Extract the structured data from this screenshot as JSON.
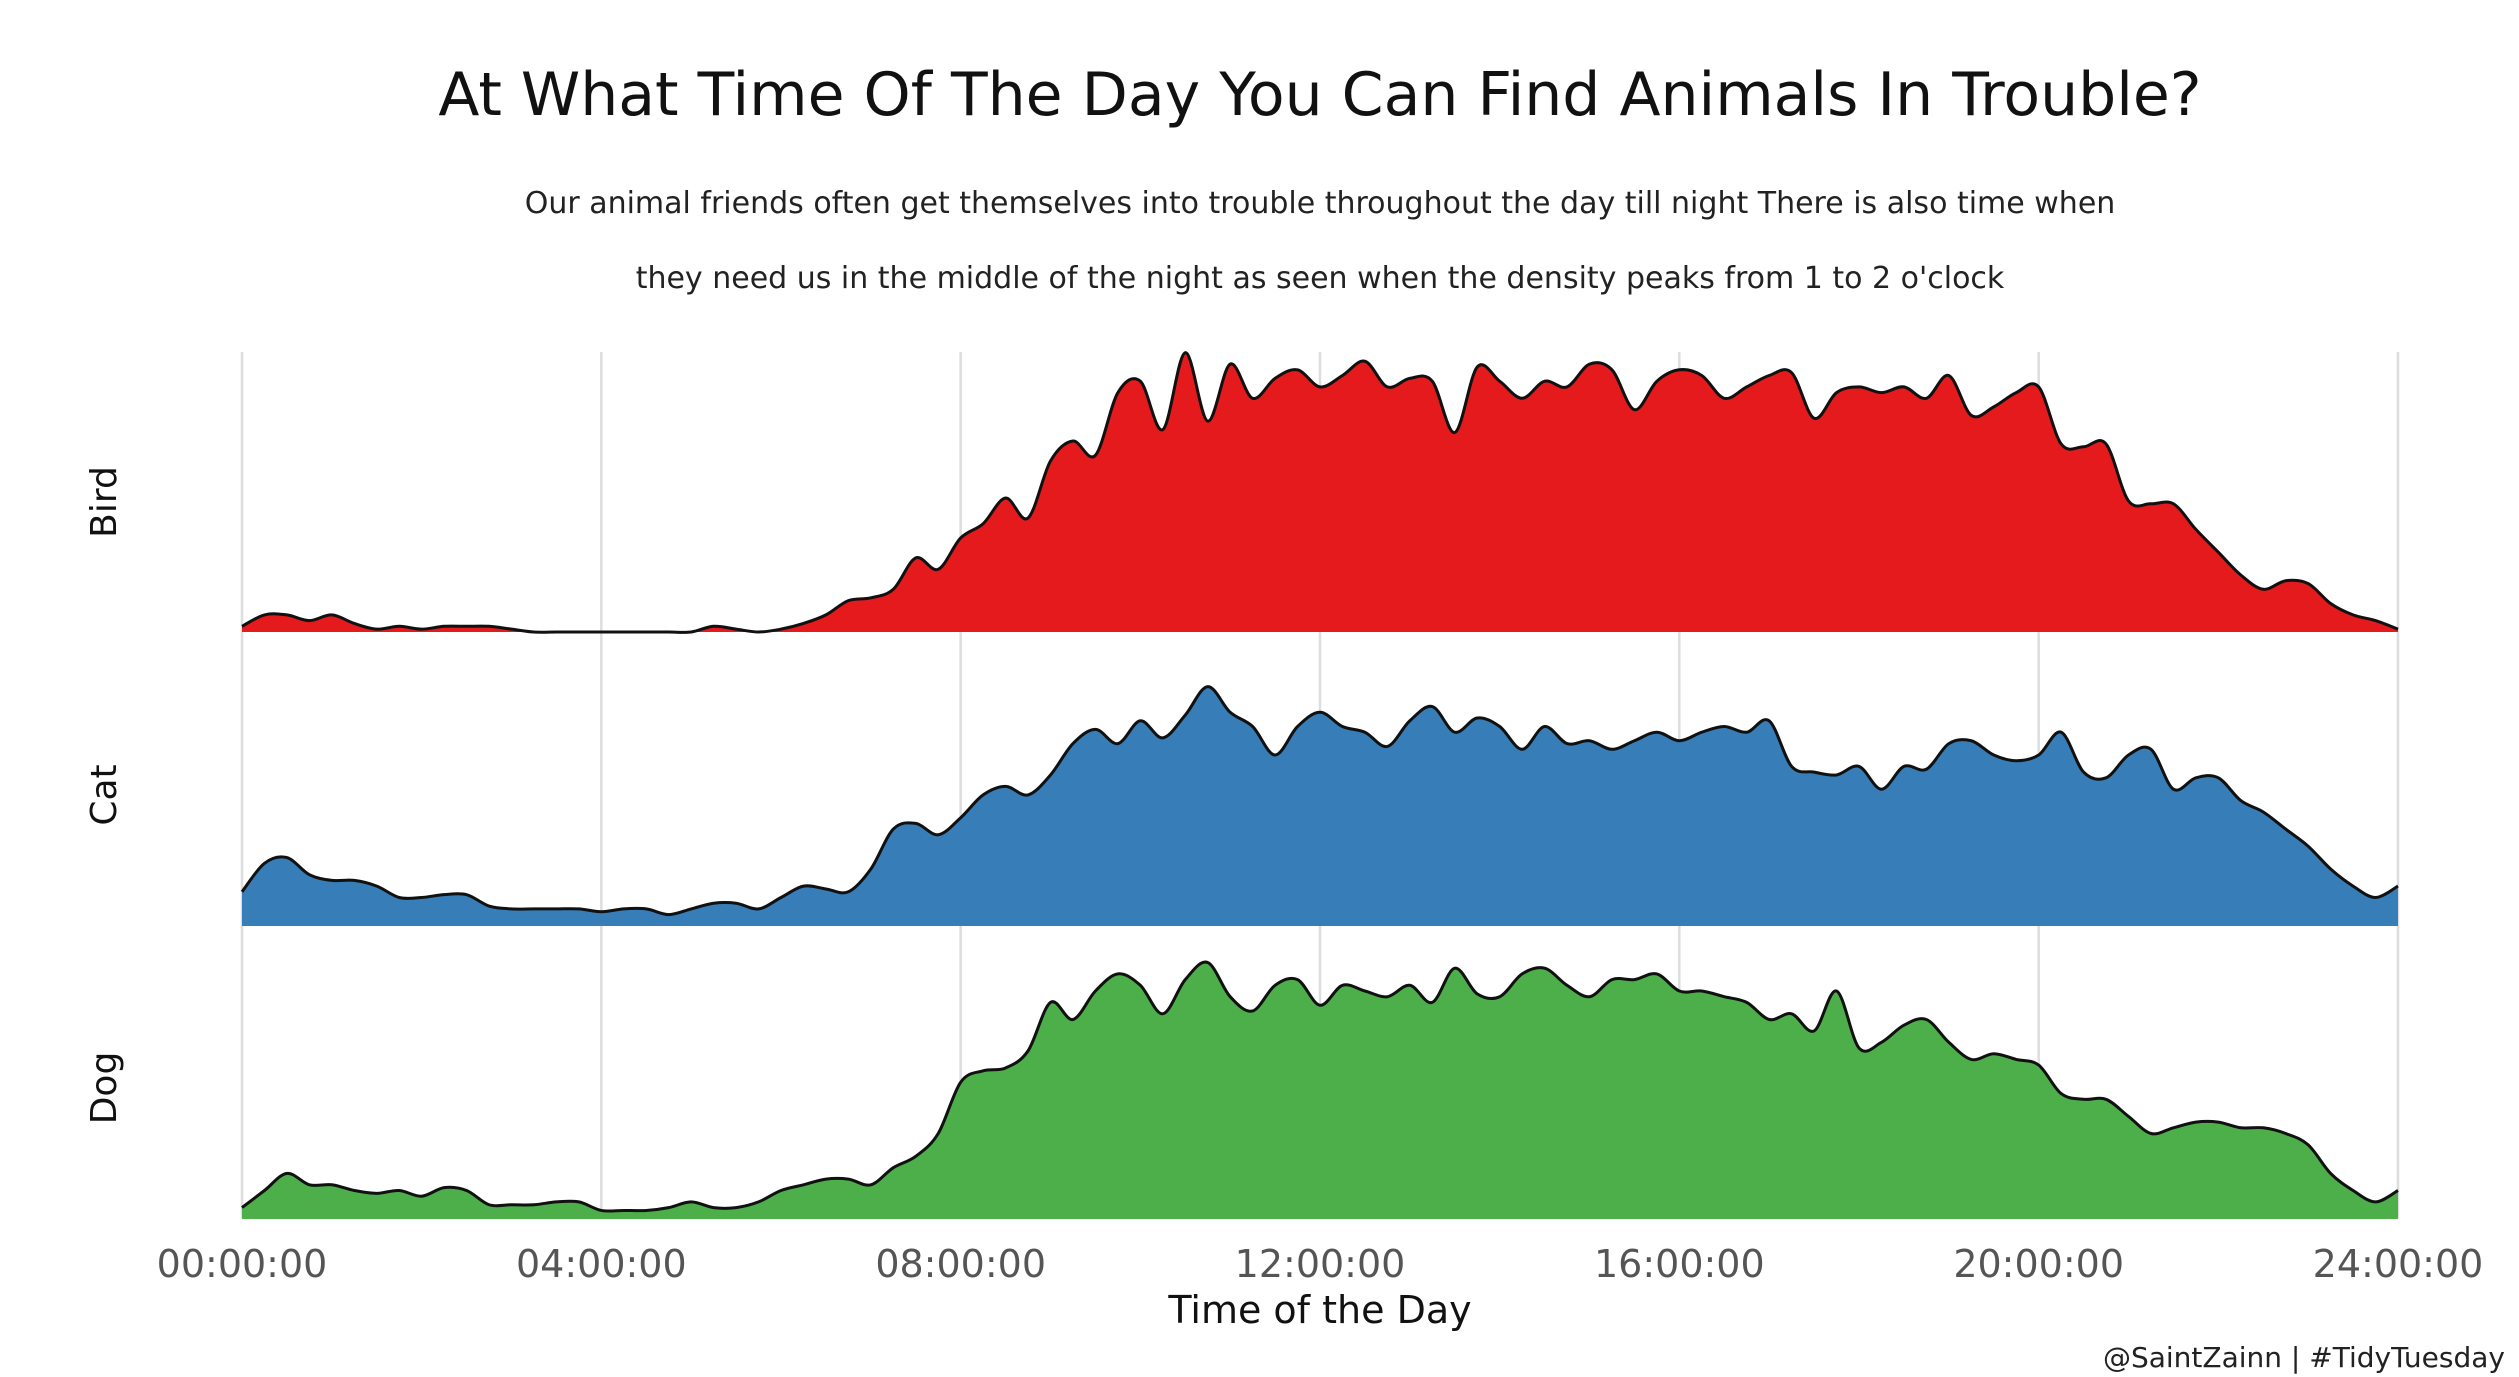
{
  "chart_data": {
    "type": "area",
    "title": "At What Time Of The Day You Can Find Animals In Trouble?",
    "subtitle_lines": [
      "Our animal friends often get themselves into trouble throughout the day till night There is also time when",
      "they need us in the middle of the night as seen when the density peaks from 1 to 2 o'clock"
    ],
    "xlabel": "Time of the Day",
    "ylabel": "",
    "xlim": [
      0,
      24
    ],
    "x_ticks": [
      0,
      4,
      8,
      12,
      16,
      20,
      24
    ],
    "x_tick_labels": [
      "00:00:00",
      "04:00:00",
      "08:00:00",
      "12:00:00",
      "16:00:00",
      "20:00:00",
      "24:00:00"
    ],
    "caption": "@SaintZainn | #TidyTuesday",
    "grid": "vertical",
    "series": [
      {
        "name": "Bird",
        "color": "#E41A1C",
        "x": [
          0,
          0.25,
          0.5,
          0.75,
          1.0,
          1.25,
          1.5,
          1.75,
          2.0,
          2.25,
          2.5,
          2.75,
          3.0,
          3.25,
          3.5,
          3.75,
          4.0,
          4.25,
          4.5,
          4.75,
          5.0,
          5.25,
          5.5,
          5.75,
          6.0,
          6.25,
          6.5,
          6.75,
          7.0,
          7.25,
          7.5,
          7.75,
          8.0,
          8.25,
          8.5,
          8.75,
          9.0,
          9.25,
          9.5,
          9.75,
          10.0,
          10.25,
          10.5,
          10.75,
          11.0,
          11.25,
          11.5,
          11.75,
          12.0,
          12.25,
          12.5,
          12.75,
          13.0,
          13.25,
          13.5,
          13.75,
          14.0,
          14.25,
          14.5,
          14.75,
          15.0,
          15.25,
          15.5,
          15.75,
          16.0,
          16.25,
          16.5,
          16.75,
          17.0,
          17.25,
          17.5,
          17.75,
          18.0,
          18.25,
          18.5,
          18.75,
          19.0,
          19.25,
          19.5,
          19.75,
          20.0,
          20.25,
          20.5,
          20.75,
          21.0,
          21.25,
          21.5,
          21.75,
          22.0,
          22.25,
          22.5,
          22.75,
          23.0,
          23.25,
          23.5,
          23.75,
          24.0
        ],
        "y": [
          0.02,
          0.06,
          0.06,
          0.04,
          0.06,
          0.03,
          0.01,
          0.02,
          0.01,
          0.02,
          0.02,
          0.02,
          0.01,
          0.0,
          0.0,
          0.0,
          0.0,
          0.0,
          0.0,
          0.0,
          0.0,
          0.02,
          0.01,
          0.0,
          0.01,
          0.03,
          0.06,
          0.11,
          0.12,
          0.15,
          0.26,
          0.22,
          0.33,
          0.38,
          0.47,
          0.4,
          0.6,
          0.67,
          0.62,
          0.84,
          0.88,
          0.71,
          0.98,
          0.74,
          0.94,
          0.82,
          0.89,
          0.92,
          0.86,
          0.9,
          0.95,
          0.86,
          0.89,
          0.88,
          0.7,
          0.93,
          0.88,
          0.82,
          0.88,
          0.86,
          0.94,
          0.92,
          0.78,
          0.88,
          0.92,
          0.9,
          0.82,
          0.86,
          0.9,
          0.91,
          0.75,
          0.84,
          0.86,
          0.84,
          0.86,
          0.82,
          0.9,
          0.76,
          0.79,
          0.84,
          0.86,
          0.66,
          0.65,
          0.66,
          0.46,
          0.45,
          0.45,
          0.36,
          0.28,
          0.2,
          0.15,
          0.18,
          0.17,
          0.1,
          0.06,
          0.04,
          0.01
        ]
      },
      {
        "name": "Cat",
        "color": "#377EB8",
        "x": [
          0,
          0.25,
          0.5,
          0.75,
          1.0,
          1.25,
          1.5,
          1.75,
          2.0,
          2.25,
          2.5,
          2.75,
          3.0,
          3.25,
          3.5,
          3.75,
          4.0,
          4.25,
          4.5,
          4.75,
          5.0,
          5.25,
          5.5,
          5.75,
          6.0,
          6.25,
          6.5,
          6.75,
          7.0,
          7.25,
          7.5,
          7.75,
          8.0,
          8.25,
          8.5,
          8.75,
          9.0,
          9.25,
          9.5,
          9.75,
          10.0,
          10.25,
          10.5,
          10.75,
          11.0,
          11.25,
          11.5,
          11.75,
          12.0,
          12.25,
          12.5,
          12.75,
          13.0,
          13.25,
          13.5,
          13.75,
          14.0,
          14.25,
          14.5,
          14.75,
          15.0,
          15.25,
          15.5,
          15.75,
          16.0,
          16.25,
          16.5,
          16.75,
          17.0,
          17.25,
          17.5,
          17.75,
          18.0,
          18.25,
          18.5,
          18.75,
          19.0,
          19.25,
          19.5,
          19.75,
          20.0,
          20.25,
          20.5,
          20.75,
          21.0,
          21.25,
          21.5,
          21.75,
          22.0,
          22.25,
          22.5,
          22.75,
          23.0,
          23.25,
          23.5,
          23.75,
          24.0
        ],
        "y": [
          0.12,
          0.22,
          0.24,
          0.18,
          0.16,
          0.16,
          0.14,
          0.1,
          0.1,
          0.11,
          0.11,
          0.07,
          0.06,
          0.06,
          0.06,
          0.06,
          0.05,
          0.06,
          0.06,
          0.04,
          0.06,
          0.08,
          0.08,
          0.06,
          0.1,
          0.14,
          0.13,
          0.12,
          0.2,
          0.34,
          0.36,
          0.32,
          0.38,
          0.46,
          0.49,
          0.46,
          0.53,
          0.64,
          0.69,
          0.64,
          0.72,
          0.66,
          0.74,
          0.84,
          0.75,
          0.7,
          0.6,
          0.7,
          0.75,
          0.7,
          0.68,
          0.63,
          0.72,
          0.77,
          0.68,
          0.73,
          0.7,
          0.62,
          0.7,
          0.64,
          0.65,
          0.62,
          0.65,
          0.68,
          0.65,
          0.68,
          0.7,
          0.68,
          0.72,
          0.56,
          0.54,
          0.53,
          0.56,
          0.48,
          0.56,
          0.55,
          0.64,
          0.65,
          0.6,
          0.58,
          0.6,
          0.68,
          0.54,
          0.52,
          0.6,
          0.62,
          0.48,
          0.52,
          0.52,
          0.44,
          0.4,
          0.34,
          0.28,
          0.2,
          0.14,
          0.1,
          0.14
        ]
      },
      {
        "name": "Dog",
        "color": "#4DAF4A",
        "x": [
          0,
          0.25,
          0.5,
          0.75,
          1.0,
          1.25,
          1.5,
          1.75,
          2.0,
          2.25,
          2.5,
          2.75,
          3.0,
          3.25,
          3.5,
          3.75,
          4.0,
          4.25,
          4.5,
          4.75,
          5.0,
          5.25,
          5.5,
          5.75,
          6.0,
          6.25,
          6.5,
          6.75,
          7.0,
          7.25,
          7.5,
          7.75,
          8.0,
          8.25,
          8.5,
          8.75,
          9.0,
          9.25,
          9.5,
          9.75,
          10.0,
          10.25,
          10.5,
          10.75,
          11.0,
          11.25,
          11.5,
          11.75,
          12.0,
          12.25,
          12.5,
          12.75,
          13.0,
          13.25,
          13.5,
          13.75,
          14.0,
          14.25,
          14.5,
          14.75,
          15.0,
          15.25,
          15.5,
          15.75,
          16.0,
          16.25,
          16.5,
          16.75,
          17.0,
          17.25,
          17.5,
          17.75,
          18.0,
          18.25,
          18.5,
          18.75,
          19.0,
          19.25,
          19.5,
          19.75,
          20.0,
          20.25,
          20.5,
          20.75,
          21.0,
          21.25,
          21.5,
          21.75,
          22.0,
          22.25,
          22.5,
          22.75,
          23.0,
          23.25,
          23.5,
          23.75,
          24.0
        ],
        "y": [
          0.04,
          0.1,
          0.16,
          0.12,
          0.12,
          0.1,
          0.09,
          0.1,
          0.08,
          0.11,
          0.1,
          0.05,
          0.05,
          0.05,
          0.06,
          0.06,
          0.03,
          0.03,
          0.03,
          0.04,
          0.06,
          0.04,
          0.04,
          0.06,
          0.1,
          0.12,
          0.14,
          0.14,
          0.12,
          0.18,
          0.22,
          0.3,
          0.48,
          0.52,
          0.53,
          0.59,
          0.76,
          0.7,
          0.8,
          0.86,
          0.82,
          0.72,
          0.84,
          0.9,
          0.78,
          0.73,
          0.82,
          0.84,
          0.75,
          0.82,
          0.8,
          0.78,
          0.82,
          0.76,
          0.88,
          0.79,
          0.78,
          0.86,
          0.88,
          0.82,
          0.78,
          0.84,
          0.84,
          0.86,
          0.8,
          0.8,
          0.78,
          0.76,
          0.7,
          0.72,
          0.66,
          0.8,
          0.6,
          0.62,
          0.68,
          0.7,
          0.62,
          0.56,
          0.58,
          0.56,
          0.54,
          0.44,
          0.42,
          0.42,
          0.36,
          0.3,
          0.32,
          0.34,
          0.34,
          0.32,
          0.32,
          0.3,
          0.26,
          0.16,
          0.1,
          0.06,
          0.1
        ]
      }
    ]
  }
}
